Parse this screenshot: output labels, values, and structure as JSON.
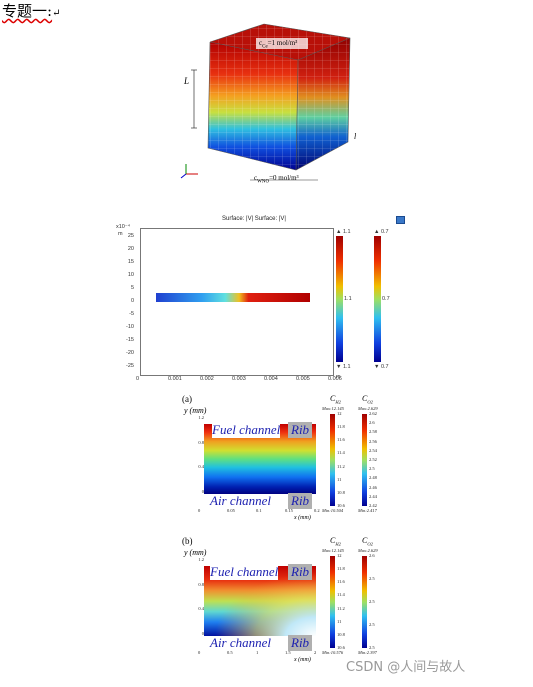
{
  "heading": {
    "text": "专题一:",
    "return_mark": "↵"
  },
  "figure1": {
    "top_label": "c",
    "top_label_sub": "Ce",
    "top_value": "=1 mol/m³",
    "bottom_label": "c",
    "bottom_label_sub": "WNO",
    "bottom_value": "=0 mol/m³",
    "L_label": "L",
    "l_label": "l",
    "axes_icon": "xyz-axes-icon"
  },
  "figure2": {
    "title": "Surface: |V|  Surface: |V|",
    "y_scale": "x10⁻⁴",
    "y_unit": "m",
    "x_unit": "m",
    "yticks": [
      "20",
      "15",
      "10",
      "5",
      "0",
      "-5",
      "-10",
      "-15",
      "-20",
      "-25"
    ],
    "yticks_top": "25",
    "xticks": [
      "0",
      "0.001",
      "0.002",
      "0.003",
      "0.004",
      "0.005",
      "0.006"
    ],
    "cbar1": {
      "max": "▲ 1.1",
      "mid": "1.1",
      "min": "▼ 1.1"
    },
    "cbar2": {
      "max": "▲ 0.7",
      "mid": "0.7",
      "min": "▼ 0.7"
    }
  },
  "figure3": {
    "panel_label": "(a)",
    "y_axis_label": "y (mm)",
    "x_axis_label": "x (mm)",
    "yticks": [
      "1.2",
      "0.8",
      "0.4",
      "0"
    ],
    "xticks": [
      "0",
      "0.05",
      "0.1",
      "0.15",
      "0.2"
    ],
    "fuel_label": "Fuel channel",
    "air_label": "Air channel",
    "rib_label": "Rib",
    "cbar1": {
      "title": "C",
      "title_sub": "H2",
      "max": "Max:12.145",
      "min": "Min:10.504",
      "ticks": [
        "12",
        "11.8",
        "11.6",
        "11.4",
        "11.2",
        "11",
        "10.8",
        "10.6"
      ]
    },
    "cbar2": {
      "title": "C",
      "title_sub": "O2",
      "max": "Max:2.629",
      "min": "Min:2.417",
      "ticks": [
        "2.62",
        "2.6",
        "2.58",
        "2.56",
        "2.54",
        "2.52",
        "2.5",
        "2.48",
        "2.46",
        "2.44",
        "2.42"
      ]
    }
  },
  "figure4": {
    "panel_label": "(b)",
    "y_axis_label": "y (mm)",
    "x_axis_label": "x (mm)",
    "yticks": [
      "1.2",
      "0.8",
      "0.4",
      "0"
    ],
    "xticks": [
      "0",
      "0.5",
      "1",
      "1.5",
      "2"
    ],
    "fuel_label": "Fuel channel",
    "air_label": "Air channel",
    "rib_label": "Rib",
    "cbar1": {
      "title": "C",
      "title_sub": "H2",
      "max": "Max:12.145",
      "min": "Min:10.576",
      "ticks": [
        "12",
        "11.8",
        "11.6",
        "11.4",
        "11.2",
        "11",
        "10.8",
        "10.6"
      ]
    },
    "cbar2": {
      "title": "C",
      "title_sub": "O2",
      "max": "Max:2.629",
      "min": "Min:2.397",
      "ticks": [
        "2.6",
        "2.5",
        "2.5",
        "2.5",
        "2.5"
      ]
    }
  },
  "watermark": "CSDN @人间与故人"
}
